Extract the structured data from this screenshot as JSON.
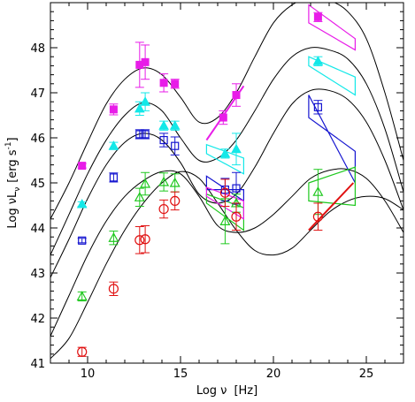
{
  "chart_data": {
    "type": "scatter",
    "xlabel": "Log ν  [Hz]",
    "ylabel": "Log νLν [erg s⁻¹]",
    "ylabel_parts": {
      "main": "Log νL",
      "sub": "ν",
      "unit": "[erg s",
      "sup": "-1",
      "close": "]"
    },
    "xlabel_parts": {
      "main": "Log ν",
      "unit": "[Hz]"
    },
    "xlim": [
      8,
      27
    ],
    "ylim": [
      41,
      49
    ],
    "xticks": [
      10,
      15,
      20,
      25
    ],
    "yticks": [
      41,
      42,
      43,
      44,
      45,
      46,
      47,
      48
    ],
    "grid": false,
    "series": [
      {
        "marker": "filled-square",
        "color": "#e81ce8",
        "points": [
          {
            "x": 9.7,
            "y": 45.38,
            "err": 0.05
          },
          {
            "x": 11.4,
            "y": 46.63,
            "err": 0.12
          },
          {
            "x": 12.8,
            "y": 47.62,
            "err": 0.5
          },
          {
            "x": 13.1,
            "y": 47.68,
            "err": 0.38
          },
          {
            "x": 14.1,
            "y": 47.22,
            "err": 0.2
          },
          {
            "x": 14.7,
            "y": 47.2,
            "err": 0.1
          },
          {
            "x": 17.3,
            "y": 46.45,
            "err": 0.15
          },
          {
            "x": 18.0,
            "y": 46.95,
            "err": 0.25
          },
          {
            "x": 22.4,
            "y": 48.68,
            "err": 0.1
          }
        ],
        "spectra": [
          {
            "from": [
              16.4,
              45.95
            ],
            "to": [
              18.4,
              47.15
            ]
          }
        ]
      },
      {
        "marker": "filled-triangle",
        "color": "#13e8e8",
        "points": [
          {
            "x": 9.7,
            "y": 44.53,
            "err": 0.05
          },
          {
            "x": 11.4,
            "y": 45.82,
            "err": 0.08
          },
          {
            "x": 12.8,
            "y": 46.65,
            "err": 0.15
          },
          {
            "x": 13.1,
            "y": 46.8,
            "err": 0.2
          },
          {
            "x": 14.1,
            "y": 46.27,
            "err": 0.1
          },
          {
            "x": 14.7,
            "y": 46.27,
            "err": 0.1
          },
          {
            "x": 17.4,
            "y": 45.65,
            "err": 0.1
          },
          {
            "x": 18.0,
            "y": 45.75,
            "err": 0.35
          },
          {
            "x": 22.4,
            "y": 47.7,
            "err": 0.1
          }
        ]
      },
      {
        "marker": "open-square",
        "color": "#1515d0",
        "points": [
          {
            "x": 9.7,
            "y": 43.72,
            "err": 0.05
          },
          {
            "x": 11.4,
            "y": 45.12,
            "err": 0.1
          },
          {
            "x": 12.8,
            "y": 46.08,
            "err": 0.1
          },
          {
            "x": 13.1,
            "y": 46.08,
            "err": 0.1
          },
          {
            "x": 14.1,
            "y": 45.95,
            "err": 0.15
          },
          {
            "x": 14.7,
            "y": 45.82,
            "err": 0.2
          },
          {
            "x": 17.4,
            "y": 44.85,
            "err": 0.25
          },
          {
            "x": 18.0,
            "y": 44.88,
            "err": 0.35
          },
          {
            "x": 22.4,
            "y": 46.68,
            "err": 0.15
          }
        ]
      },
      {
        "marker": "open-triangle",
        "color": "#1ec81e",
        "points": [
          {
            "x": 9.7,
            "y": 42.48,
            "err": 0.1
          },
          {
            "x": 11.4,
            "y": 43.78,
            "err": 0.15
          },
          {
            "x": 12.8,
            "y": 44.68,
            "err": 0.2
          },
          {
            "x": 13.1,
            "y": 44.98,
            "err": 0.25
          },
          {
            "x": 14.1,
            "y": 45.02,
            "err": 0.2
          },
          {
            "x": 14.7,
            "y": 45.0,
            "err": 0.2
          },
          {
            "x": 17.4,
            "y": 44.15,
            "err": 0.5
          },
          {
            "x": 18.0,
            "y": 44.55,
            "err": 0.2
          },
          {
            "x": 22.4,
            "y": 44.8,
            "err": 0.5
          }
        ]
      },
      {
        "marker": "open-circle",
        "color": "#e01010",
        "points": [
          {
            "x": 9.7,
            "y": 41.25,
            "err": 0.1
          },
          {
            "x": 11.4,
            "y": 42.65,
            "err": 0.15
          },
          {
            "x": 12.8,
            "y": 43.73,
            "err": 0.3
          },
          {
            "x": 13.1,
            "y": 43.75,
            "err": 0.3
          },
          {
            "x": 14.1,
            "y": 44.42,
            "err": 0.2
          },
          {
            "x": 14.7,
            "y": 44.6,
            "err": 0.2
          },
          {
            "x": 17.4,
            "y": 44.78,
            "err": 0.3
          },
          {
            "x": 18.0,
            "y": 44.25,
            "err": 0.3
          },
          {
            "x": 22.4,
            "y": 44.25,
            "err": 0.3
          }
        ],
        "spectra": [
          {
            "from": [
              21.9,
              43.95
            ],
            "to": [
              24.3,
              45.0
            ]
          }
        ]
      }
    ],
    "model_curves": [
      {
        "x": [
          8,
          9,
          10,
          11,
          12,
          13,
          14,
          15,
          16,
          17,
          18,
          19,
          20,
          21,
          22,
          23,
          24,
          25,
          26,
          27
        ],
        "y": [
          44.2,
          45.0,
          45.9,
          46.75,
          47.3,
          47.55,
          47.4,
          46.9,
          46.35,
          46.45,
          47.0,
          47.8,
          48.55,
          48.95,
          49.1,
          49.05,
          48.8,
          48.2,
          47.0,
          45.5
        ]
      },
      {
        "x": [
          8,
          9,
          10,
          11,
          12,
          13,
          14,
          15,
          16,
          17,
          18,
          19,
          20,
          21,
          22,
          23,
          24,
          25,
          26,
          27
        ],
        "y": [
          43.4,
          44.3,
          45.2,
          45.95,
          46.5,
          46.78,
          46.6,
          46.0,
          45.5,
          45.55,
          45.95,
          46.6,
          47.3,
          47.8,
          48.0,
          47.95,
          47.75,
          47.2,
          46.2,
          44.8
        ]
      },
      {
        "x": [
          8,
          9,
          10,
          11,
          12,
          13,
          14,
          15,
          16,
          17,
          18,
          19,
          20,
          21,
          22,
          23,
          24,
          25,
          26,
          27
        ],
        "y": [
          42.9,
          43.75,
          44.65,
          45.4,
          45.9,
          46.1,
          45.95,
          45.45,
          44.75,
          44.55,
          44.75,
          45.35,
          46.1,
          46.75,
          47.05,
          47.05,
          46.85,
          46.35,
          45.5,
          44.4
        ]
      },
      {
        "x": [
          8,
          9,
          10,
          11,
          12,
          13,
          14,
          15,
          16,
          17,
          18,
          19,
          20,
          21,
          22,
          23,
          24,
          25,
          26,
          27
        ],
        "y": [
          41.6,
          42.5,
          43.4,
          44.15,
          44.7,
          45.05,
          45.25,
          45.2,
          44.7,
          44.05,
          43.9,
          44.0,
          44.3,
          44.7,
          45.1,
          45.28,
          45.3,
          45.1,
          44.6,
          43.9
        ]
      },
      {
        "x": [
          8,
          9,
          10,
          11,
          12,
          13,
          14,
          15,
          16,
          17,
          18,
          19,
          20,
          21,
          22,
          23,
          24,
          25,
          26,
          27
        ],
        "y": [
          41.1,
          41.55,
          42.35,
          43.2,
          43.95,
          44.55,
          45.0,
          45.25,
          45.1,
          44.55,
          43.95,
          43.5,
          43.4,
          43.55,
          43.95,
          44.35,
          44.6,
          44.7,
          44.65,
          44.4
        ]
      }
    ],
    "gamma_bowties": [
      {
        "color": "#e81ce8",
        "x": [
          21.9,
          24.4
        ],
        "top": [
          48.95,
          48.2
        ],
        "bottom": [
          48.55,
          47.95
        ]
      },
      {
        "color": "#13e8e8",
        "x": [
          21.9,
          24.4
        ],
        "top": [
          47.8,
          47.35
        ],
        "bottom": [
          47.6,
          46.95
        ]
      },
      {
        "color": "#1515d0",
        "x": [
          21.9,
          24.4
        ],
        "top": [
          46.95,
          45.0
        ],
        "bottom": [
          46.45,
          45.7
        ]
      },
      {
        "color": "#1ec81e",
        "x": [
          21.9,
          24.4
        ],
        "top": [
          45.0,
          45.35
        ],
        "bottom": [
          44.6,
          44.5
        ]
      }
    ],
    "xray_bowties": [
      {
        "color": "#1515d0",
        "x": [
          16.4,
          18.4
        ],
        "top": [
          45.15,
          44.6
        ],
        "bottom": [
          44.85,
          44.85
        ]
      },
      {
        "color": "#1ec81e",
        "x": [
          16.4,
          18.4
        ],
        "top": [
          44.75,
          44.45
        ],
        "bottom": [
          44.55,
          43.95
        ]
      },
      {
        "color": "#e81ce8",
        "x": [
          16.4,
          18.4
        ],
        "top": [
          44.9,
          44.6
        ],
        "bottom": [
          44.7,
          44.2
        ]
      },
      {
        "color": "#13e8e8",
        "x": [
          16.4,
          18.4
        ],
        "top": [
          45.85,
          45.55
        ],
        "bottom": [
          45.65,
          45.2
        ]
      }
    ]
  }
}
